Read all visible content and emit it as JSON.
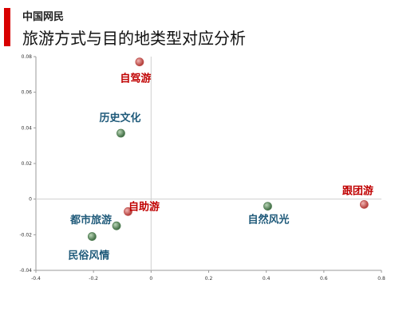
{
  "header": {
    "kicker": "中国网民",
    "title": "旅游方式与目的地类型对应分析"
  },
  "colors": {
    "accent": "#d80000",
    "method": "#c00000",
    "destination": "#1f5a7a",
    "method_marker": "#c0504d",
    "destination_marker": "#4f7d52"
  },
  "chart_data": {
    "type": "scatter",
    "title": "旅游方式与目的地类型对应分析",
    "xlabel": "",
    "ylabel": "",
    "xlim": [
      -0.4,
      0.8
    ],
    "ylim": [
      -0.04,
      0.08
    ],
    "xticks": [
      "-0.4",
      "-0.2",
      "0",
      "0.2",
      "0.4",
      "0.6",
      "0.8"
    ],
    "yticks": [
      "0.08",
      "0.06",
      "0.04",
      "0.02",
      "0",
      "-0.02",
      "-0.04"
    ],
    "grid": false,
    "series": [
      {
        "points": [
          {
            "label": "自驾游",
            "x": -0.04,
            "y": 0.077
          },
          {
            "label": "自助游",
            "x": -0.08,
            "y": -0.007
          },
          {
            "label": "跟团游",
            "x": 0.74,
            "y": -0.003
          }
        ]
      },
      {
        "points": [
          {
            "label": "历史文化",
            "x": -0.105,
            "y": 0.037
          },
          {
            "label": "都市旅游",
            "x": -0.12,
            "y": -0.015
          },
          {
            "label": "民俗风情",
            "x": -0.205,
            "y": -0.021
          },
          {
            "label": "自然风光",
            "x": 0.405,
            "y": -0.004
          }
        ]
      }
    ]
  }
}
